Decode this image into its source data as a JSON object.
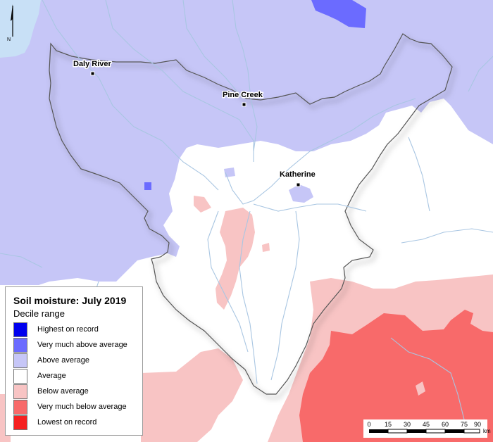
{
  "map": {
    "north_label": "N",
    "towns": [
      {
        "id": "daly-river",
        "name": "Daly River"
      },
      {
        "id": "pine-creek",
        "name": "Pine Creek"
      },
      {
        "id": "katherine",
        "name": "Katherine"
      }
    ]
  },
  "legend": {
    "title": "Soil moisture: July 2019",
    "subtitle": "Decile range",
    "items": [
      {
        "label": "Highest on record",
        "color": "#0000ee"
      },
      {
        "label": "Very much above average",
        "color": "#6b6bff"
      },
      {
        "label": "Above average",
        "color": "#c6c6f7"
      },
      {
        "label": "Average",
        "color": "#ffffff"
      },
      {
        "label": "Below average",
        "color": "#f8c4c4"
      },
      {
        "label": "Very much below average",
        "color": "#f86a6a"
      },
      {
        "label": "Lowest on record",
        "color": "#f62020"
      }
    ]
  },
  "scale": {
    "ticks": [
      "0",
      "15",
      "30",
      "45",
      "60",
      "75",
      "90"
    ],
    "unit": "km"
  }
}
